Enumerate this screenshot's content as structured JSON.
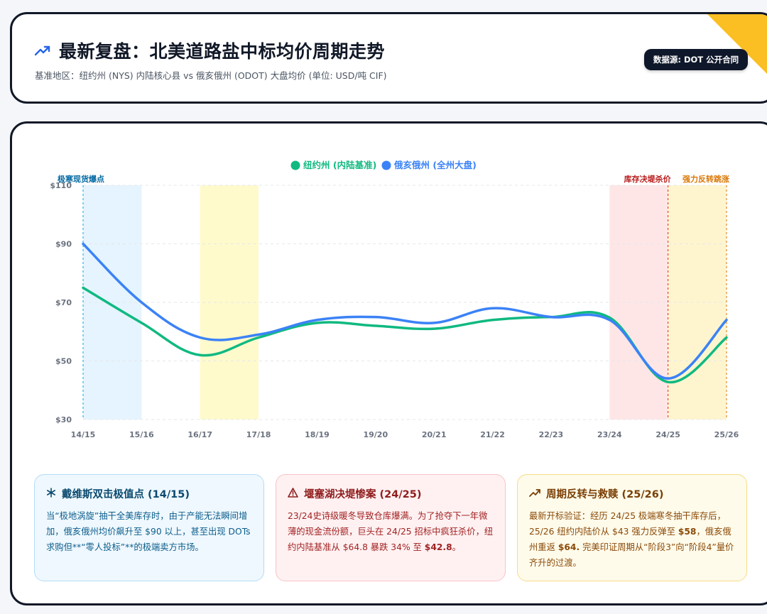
{
  "header": {
    "title": "最新复盘：北美道路盐中标均价周期走势",
    "subtitle": "基准地区：纽约州 (NYS) 内陆核心县 vs 俄亥俄州 (ODOT) 大盘均价 (单位: USD/吨 CIF)",
    "source_badge": "数据源: DOT 公开合同",
    "ribbon_color": "#fbbf24"
  },
  "chart_data": {
    "type": "line",
    "categories": [
      "14/15",
      "15/16",
      "16/17",
      "17/18",
      "18/19",
      "19/20",
      "20/21",
      "21/22",
      "22/23",
      "23/24",
      "24/25",
      "25/26"
    ],
    "series": [
      {
        "name": "纽约州 (内陆基准)",
        "color": "#10b981",
        "values": [
          75,
          63,
          52,
          58,
          63,
          62,
          61,
          64,
          65,
          64.8,
          42.8,
          58
        ]
      },
      {
        "name": "俄亥俄州 (全州大盘)",
        "color": "#3b82f6",
        "values": [
          90,
          70,
          58,
          59,
          64,
          65,
          63,
          68,
          65,
          64,
          44,
          64
        ]
      }
    ],
    "yticks": [
      "$110",
      "$90",
      "$70",
      "$50",
      "$30"
    ],
    "ylim": [
      30,
      110
    ],
    "grid": true,
    "legend_position": "top-center",
    "bands": [
      {
        "from": "14/15",
        "to": "15/16",
        "color": "#e0f2fe",
        "label": "极寒现货爆点",
        "label_color": "#0369a1"
      },
      {
        "from": "16/17",
        "to": "17/18",
        "color": "#fef9c3",
        "label": "",
        "label_color": ""
      },
      {
        "from": "23/24",
        "to": "24/25",
        "color": "#fee2e2",
        "label": "库存决堤杀价",
        "label_color": "#b91c1c"
      },
      {
        "from": "24/25",
        "to": "25/26",
        "color": "#fef3c7",
        "label": "强力反转跳涨",
        "label_color": "#d97706"
      }
    ],
    "markers": [
      {
        "at": "14/15",
        "color": "#0ea5e9"
      },
      {
        "at": "24/25",
        "color": "#dc2626"
      },
      {
        "at": "25/26",
        "color": "#d97706"
      }
    ]
  },
  "cards": [
    {
      "icon": "snowflake-icon",
      "title": "戴维斯双击极值点 (14/15)",
      "body": "当“极地涡旋”抽干全美库存时，由于产能无法瞬间增加，俄亥俄州均价飙升至 $90 以上，甚至出现 DOTs 求购但**“零人投标”**的极端卖方市场。"
    },
    {
      "icon": "warning-icon",
      "title": "堰塞湖决堤惨案 (24/25)",
      "body_parts": [
        "23/24史诗级暖冬导致仓库爆满。为了抢夺下一年微薄的现金流份额，巨头在 24/25 招标中疯狂杀价，纽约内陆基准从 $64.8 暴跌 34% 至 ",
        "$42.8",
        "。"
      ]
    },
    {
      "icon": "trend-up-icon",
      "title": "周期反转与救赎 (25/26)",
      "body_parts": [
        "最新开标验证：经历 24/25 极端寒冬抽干库存后，25/26 纽约内陆价从 $43 强力反弹至 ",
        "$58",
        "，俄亥俄州重返 ",
        "$64.",
        " 完美印证周期从“阶段3”向“阶段4”量价齐升的过渡。"
      ]
    }
  ]
}
